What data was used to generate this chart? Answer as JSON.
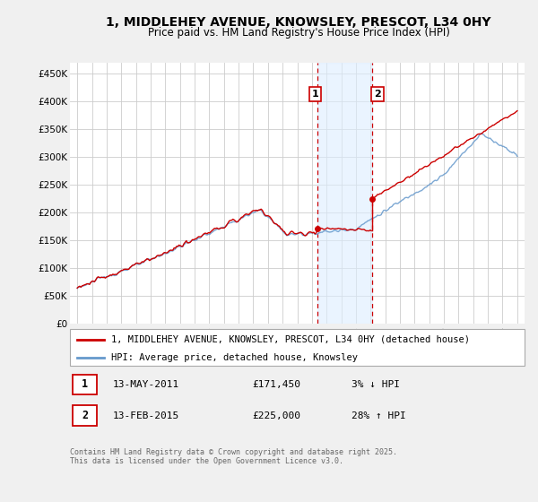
{
  "title": "1, MIDDLEHEY AVENUE, KNOWSLEY, PRESCOT, L34 0HY",
  "subtitle": "Price paid vs. HM Land Registry's House Price Index (HPI)",
  "title_fontsize": 10,
  "subtitle_fontsize": 8.5,
  "ylabel_ticks": [
    "£0",
    "£50K",
    "£100K",
    "£150K",
    "£200K",
    "£250K",
    "£300K",
    "£350K",
    "£400K",
    "£450K"
  ],
  "ytick_values": [
    0,
    50000,
    100000,
    150000,
    200000,
    250000,
    300000,
    350000,
    400000,
    450000
  ],
  "ylim": [
    0,
    470000
  ],
  "xlim_start": 1994.5,
  "xlim_end": 2025.5,
  "purchase1_date": 2011.37,
  "purchase1_price": 171450,
  "purchase1_label": "1",
  "purchase2_date": 2015.12,
  "purchase2_price": 225000,
  "purchase2_label": "2",
  "hpi_line_color": "#6699cc",
  "price_line_color": "#cc0000",
  "purchase_marker_color": "#cc0000",
  "vline_color": "#cc0000",
  "shade_color": "#ddeeff",
  "legend_line1": "1, MIDDLEHEY AVENUE, KNOWSLEY, PRESCOT, L34 0HY (detached house)",
  "legend_line2": "HPI: Average price, detached house, Knowsley",
  "table_row1": [
    "1",
    "13-MAY-2011",
    "£171,450",
    "3% ↓ HPI"
  ],
  "table_row2": [
    "2",
    "13-FEB-2015",
    "£225,000",
    "28% ↑ HPI"
  ],
  "footnote": "Contains HM Land Registry data © Crown copyright and database right 2025.\nThis data is licensed under the Open Government Licence v3.0.",
  "bg_color": "#f0f0f0",
  "plot_bg_color": "#ffffff"
}
